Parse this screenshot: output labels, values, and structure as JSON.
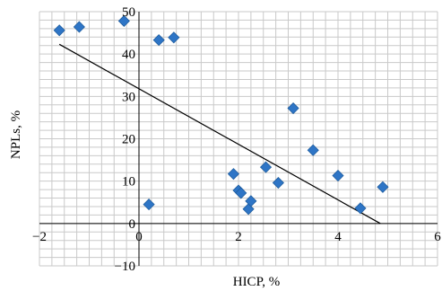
{
  "chart_data": {
    "type": "scatter",
    "xlabel": "HICP, %",
    "ylabel": "NPLs, %",
    "xlim": [
      -2,
      6
    ],
    "ylim": [
      -10,
      50
    ],
    "x_ticks": [
      -2,
      0,
      2,
      4,
      6
    ],
    "y_ticks": [
      -10,
      0,
      10,
      20,
      30,
      40,
      50
    ],
    "x_tick_labels": [
      "−2",
      "0",
      "2",
      "4",
      "6"
    ],
    "y_tick_labels": [
      "−10",
      "0",
      "10",
      "20",
      "30",
      "40",
      "50"
    ],
    "grid": true,
    "marker_color": "#2e75c6",
    "points": [
      {
        "x": -1.6,
        "y": 45.6
      },
      {
        "x": -1.2,
        "y": 46.4
      },
      {
        "x": -0.3,
        "y": 47.8
      },
      {
        "x": 0.4,
        "y": 43.3
      },
      {
        "x": 0.7,
        "y": 43.9
      },
      {
        "x": 0.2,
        "y": 4.5
      },
      {
        "x": 1.9,
        "y": 11.7
      },
      {
        "x": 2.0,
        "y": 7.8
      },
      {
        "x": 2.05,
        "y": 7.2
      },
      {
        "x": 2.2,
        "y": 3.4
      },
      {
        "x": 2.25,
        "y": 5.3
      },
      {
        "x": 2.55,
        "y": 13.3
      },
      {
        "x": 2.8,
        "y": 9.6
      },
      {
        "x": 3.1,
        "y": 27.2
      },
      {
        "x": 3.5,
        "y": 17.3
      },
      {
        "x": 4.0,
        "y": 11.3
      },
      {
        "x": 4.45,
        "y": 3.6
      },
      {
        "x": 4.9,
        "y": 8.6
      }
    ],
    "trendline": {
      "x": [
        -1.6,
        4.85
      ],
      "y": [
        42.3,
        0.0
      ]
    }
  }
}
